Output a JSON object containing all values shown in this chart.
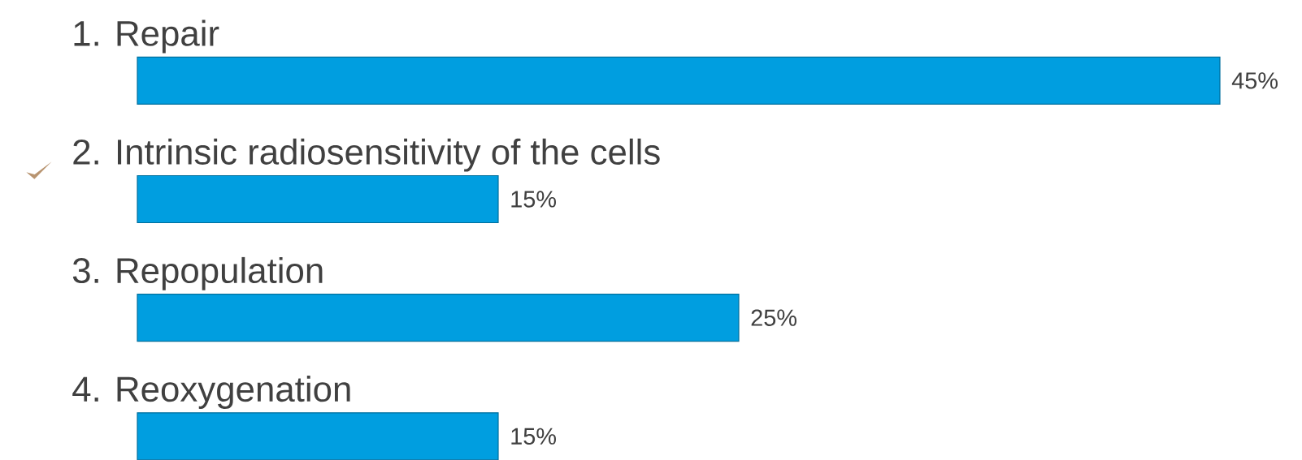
{
  "chart_data": {
    "type": "bar",
    "orientation": "horizontal",
    "categories": [
      "1. Repair",
      "2. Intrinsic radiosensitivity of the cells",
      "3. Repopulation",
      "4. Reoxygenation"
    ],
    "values": [
      45,
      15,
      25,
      15
    ],
    "value_labels": [
      "45%",
      "15%",
      "25%",
      "15%"
    ],
    "color": "#009ee0"
  }
}
